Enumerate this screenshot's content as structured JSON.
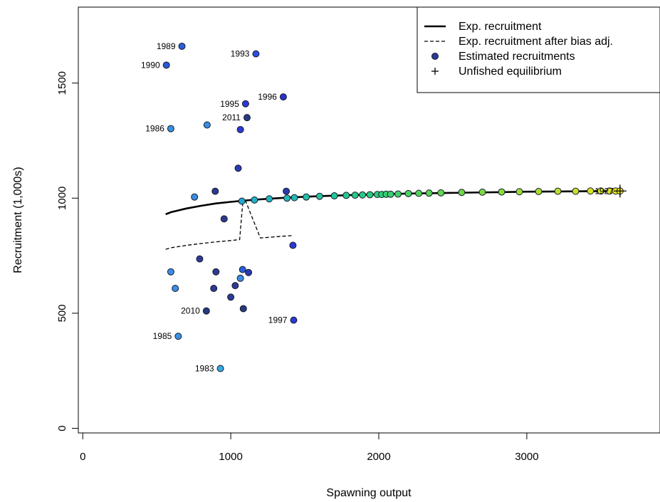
{
  "chart_data": {
    "type": "scatter",
    "title": "",
    "xlabel": "Spawning output",
    "ylabel": "Recruitment (1,000s)",
    "xlim": [
      -30,
      3900
    ],
    "ylim": [
      -20,
      1830
    ],
    "x_ticks": [
      0,
      1000,
      2000,
      3000
    ],
    "y_ticks": [
      0,
      500,
      1000,
      1500
    ],
    "grid": false,
    "legend_position": "top-right",
    "legend": [
      {
        "label": "Exp. recruitment",
        "style": "solid-line"
      },
      {
        "label": "Exp. recruitment after bias adj.",
        "style": "dashed-line"
      },
      {
        "label": "Estimated recruitments",
        "style": "dot"
      },
      {
        "label": "Unfished equilibrium",
        "style": "plus"
      }
    ],
    "series": [
      {
        "name": "Exp. recruitment",
        "style": "solid",
        "x": [
          560,
          600,
          700,
          800,
          900,
          1000,
          1100,
          1200,
          1300,
          1400,
          1600,
          1800,
          2000,
          2200,
          2400,
          2600,
          2800,
          3000,
          3200,
          3400,
          3600
        ],
        "y": [
          930,
          940,
          955,
          967,
          977,
          984,
          990,
          995,
          999,
          1003,
          1009,
          1013,
          1017,
          1020,
          1022,
          1024,
          1026,
          1028,
          1029,
          1030,
          1031
        ]
      },
      {
        "name": "Exp. recruitment after bias adj.",
        "style": "dashed",
        "x": [
          560,
          600,
          700,
          800,
          900,
          1000,
          1060,
          1080,
          1100,
          1200,
          1300,
          1420
        ],
        "y": [
          778,
          785,
          795,
          803,
          810,
          816,
          820,
          975,
          988,
          827,
          832,
          838
        ]
      }
    ],
    "points": [
      {
        "label": "1989",
        "x": 670,
        "y": 1660,
        "color": "#2a5fd6"
      },
      {
        "label": "1990",
        "x": 565,
        "y": 1578,
        "color": "#2a58d8"
      },
      {
        "label": "1993",
        "x": 1170,
        "y": 1627,
        "color": "#2a4fe0"
      },
      {
        "label": "1996",
        "x": 1355,
        "y": 1440,
        "color": "#2833c8"
      },
      {
        "label": "1995",
        "x": 1100,
        "y": 1410,
        "color": "#2a3ad4"
      },
      {
        "label": "2011",
        "x": 1110,
        "y": 1350,
        "color": "#263a80"
      },
      {
        "label": "1986",
        "x": 595,
        "y": 1302,
        "color": "#3a92e0"
      },
      {
        "label": "",
        "x": 840,
        "y": 1318,
        "color": "#3a8ee4"
      },
      {
        "label": "",
        "x": 1065,
        "y": 1298,
        "color": "#2a3ad4"
      },
      {
        "label": "",
        "x": 1050,
        "y": 1130,
        "color": "#2a3ab0"
      },
      {
        "label": "",
        "x": 755,
        "y": 1005,
        "color": "#3a8ee4"
      },
      {
        "label": "",
        "x": 895,
        "y": 1030,
        "color": "#2c3a92"
      },
      {
        "label": "",
        "x": 1375,
        "y": 1030,
        "color": "#2a3ab0"
      },
      {
        "label": "",
        "x": 955,
        "y": 910,
        "color": "#2c3a92"
      },
      {
        "label": "",
        "x": 790,
        "y": 736,
        "color": "#2c3a92"
      },
      {
        "label": "",
        "x": 1420,
        "y": 795,
        "color": "#2a3ad4"
      },
      {
        "label": "",
        "x": 595,
        "y": 680,
        "color": "#3a8ee4"
      },
      {
        "label": "",
        "x": 900,
        "y": 680,
        "color": "#2c3a92"
      },
      {
        "label": "",
        "x": 1080,
        "y": 690,
        "color": "#2a5fd6"
      },
      {
        "label": "",
        "x": 1120,
        "y": 677,
        "color": "#2a3ab0"
      },
      {
        "label": "",
        "x": 1065,
        "y": 652,
        "color": "#3a8ee4"
      },
      {
        "label": "",
        "x": 625,
        "y": 608,
        "color": "#3a8ee4"
      },
      {
        "label": "",
        "x": 885,
        "y": 608,
        "color": "#2c3a92"
      },
      {
        "label": "",
        "x": 1030,
        "y": 620,
        "color": "#2c3a92"
      },
      {
        "label": "",
        "x": 1000,
        "y": 570,
        "color": "#2c3a92"
      },
      {
        "label": "2010",
        "x": 835,
        "y": 510,
        "color": "#263a80"
      },
      {
        "label": "",
        "x": 1085,
        "y": 520,
        "color": "#263a80"
      },
      {
        "label": "1997",
        "x": 1425,
        "y": 470,
        "color": "#2a3ad4"
      },
      {
        "label": "1985",
        "x": 645,
        "y": 400,
        "color": "#3a92e0"
      },
      {
        "label": "1983",
        "x": 930,
        "y": 260,
        "color": "#3aa6e4"
      },
      {
        "label": "",
        "x": 1075,
        "y": 987,
        "color": "#22a8d0"
      },
      {
        "label": "",
        "x": 1160,
        "y": 992,
        "color": "#22b0c8"
      },
      {
        "label": "",
        "x": 1260,
        "y": 997,
        "color": "#22b4c0"
      },
      {
        "label": "",
        "x": 1380,
        "y": 1000,
        "color": "#22b8b8"
      },
      {
        "label": "",
        "x": 1430,
        "y": 1002,
        "color": "#22bcb0"
      },
      {
        "label": "",
        "x": 1510,
        "y": 1005,
        "color": "#22c0a8"
      },
      {
        "label": "",
        "x": 1600,
        "y": 1008,
        "color": "#22c4a0"
      },
      {
        "label": "",
        "x": 1700,
        "y": 1010,
        "color": "#22c898"
      },
      {
        "label": "",
        "x": 1780,
        "y": 1012,
        "color": "#22c890"
      },
      {
        "label": "",
        "x": 1840,
        "y": 1013,
        "color": "#24ca88"
      },
      {
        "label": "",
        "x": 1890,
        "y": 1014,
        "color": "#26cc84"
      },
      {
        "label": "",
        "x": 1940,
        "y": 1015,
        "color": "#28cc80"
      },
      {
        "label": "",
        "x": 1990,
        "y": 1016,
        "color": "#2ccc7c"
      },
      {
        "label": "",
        "x": 2020,
        "y": 1016,
        "color": "#30ce78"
      },
      {
        "label": "",
        "x": 2050,
        "y": 1017,
        "color": "#34d074"
      },
      {
        "label": "",
        "x": 2080,
        "y": 1017,
        "color": "#38d070"
      },
      {
        "label": "",
        "x": 2130,
        "y": 1018,
        "color": "#40d26a"
      },
      {
        "label": "",
        "x": 2200,
        "y": 1020,
        "color": "#48d462"
      },
      {
        "label": "",
        "x": 2270,
        "y": 1021,
        "color": "#50d45c"
      },
      {
        "label": "",
        "x": 2340,
        "y": 1022,
        "color": "#58d656"
      },
      {
        "label": "",
        "x": 2420,
        "y": 1023,
        "color": "#60d850"
      },
      {
        "label": "",
        "x": 2560,
        "y": 1025,
        "color": "#6cd84a"
      },
      {
        "label": "",
        "x": 2700,
        "y": 1026,
        "color": "#78da44"
      },
      {
        "label": "",
        "x": 2830,
        "y": 1027,
        "color": "#88dc3e"
      },
      {
        "label": "",
        "x": 2950,
        "y": 1028,
        "color": "#98de38"
      },
      {
        "label": "",
        "x": 3080,
        "y": 1029,
        "color": "#a8de34"
      },
      {
        "label": "",
        "x": 3210,
        "y": 1030,
        "color": "#b8e030"
      },
      {
        "label": "",
        "x": 3330,
        "y": 1030,
        "color": "#c8e02c"
      },
      {
        "label": "",
        "x": 3430,
        "y": 1031,
        "color": "#d4e228"
      },
      {
        "label": "",
        "x": 3500,
        "y": 1031,
        "color": "#dce426"
      },
      {
        "label": "",
        "x": 3560,
        "y": 1031,
        "color": "#e0e424"
      },
      {
        "label": "",
        "x": 3600,
        "y": 1031,
        "color": "#e4e422"
      },
      {
        "label": "1927",
        "x": 3630,
        "y": 1031,
        "color": "#e8e420"
      }
    ],
    "unfished_equilibrium": {
      "x": 3630,
      "y": 1031
    }
  }
}
